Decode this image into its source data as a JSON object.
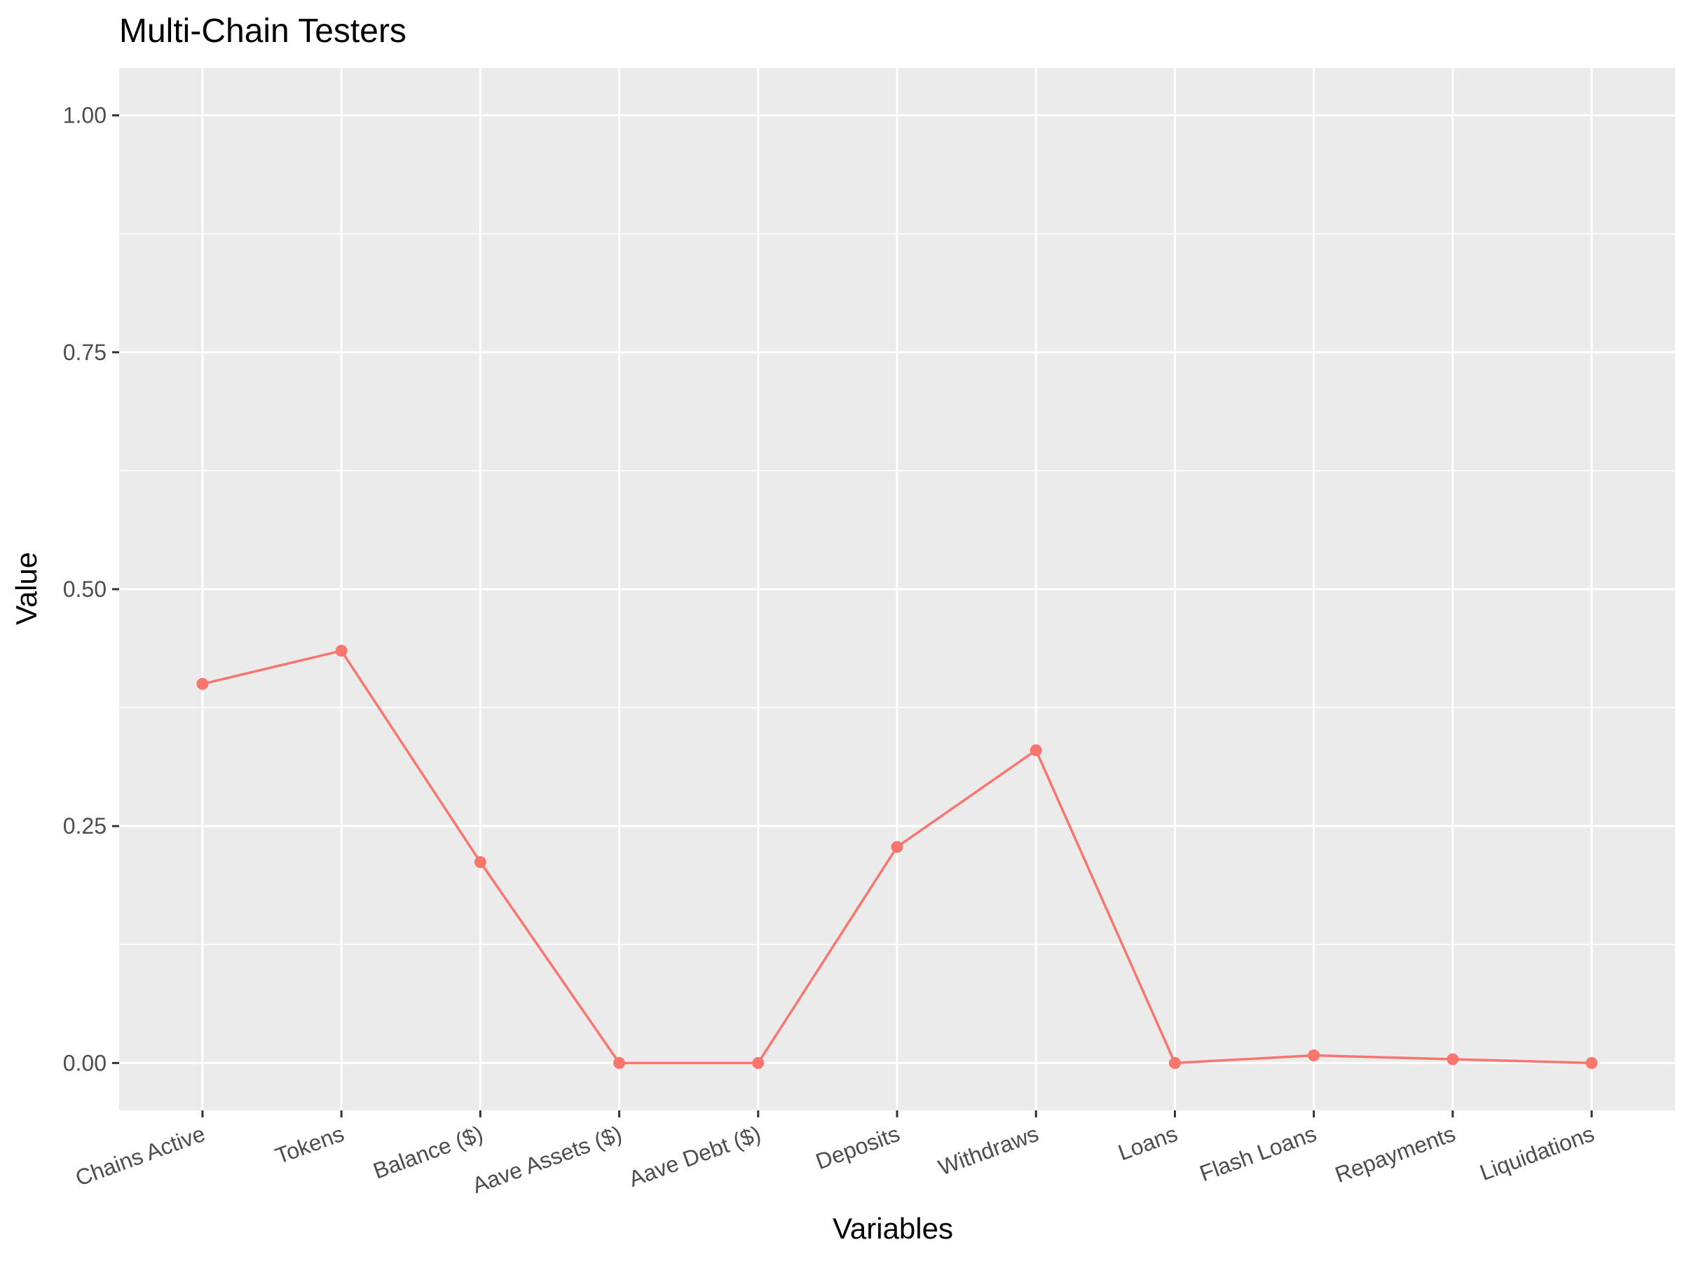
{
  "chart_data": {
    "type": "line",
    "title": "Multi-Chain Testers",
    "xlabel": "Variables",
    "ylabel": "Value",
    "categories": [
      "Chains Active",
      "Tokens",
      "Balance ($)",
      "Aave Assets ($)",
      "Aave Debt ($)",
      "Deposits",
      "Withdraws",
      "Loans",
      "Flash Loans",
      "Repayments",
      "Liquidations"
    ],
    "values": [
      0.4,
      0.435,
      0.212,
      0.0,
      0.0,
      0.228,
      0.33,
      0.0,
      0.008,
      0.004,
      0.0
    ],
    "ylim": [
      -0.05,
      1.05
    ],
    "yticks": [
      0.0,
      0.25,
      0.5,
      0.75,
      1.0
    ],
    "ytick_labels": [
      "0.00",
      "0.25",
      "0.50",
      "0.75",
      "1.00"
    ],
    "grid": true,
    "colors": {
      "series": "#F8766D",
      "panel": "#EBEBEB",
      "grid": "#FFFFFF"
    }
  }
}
